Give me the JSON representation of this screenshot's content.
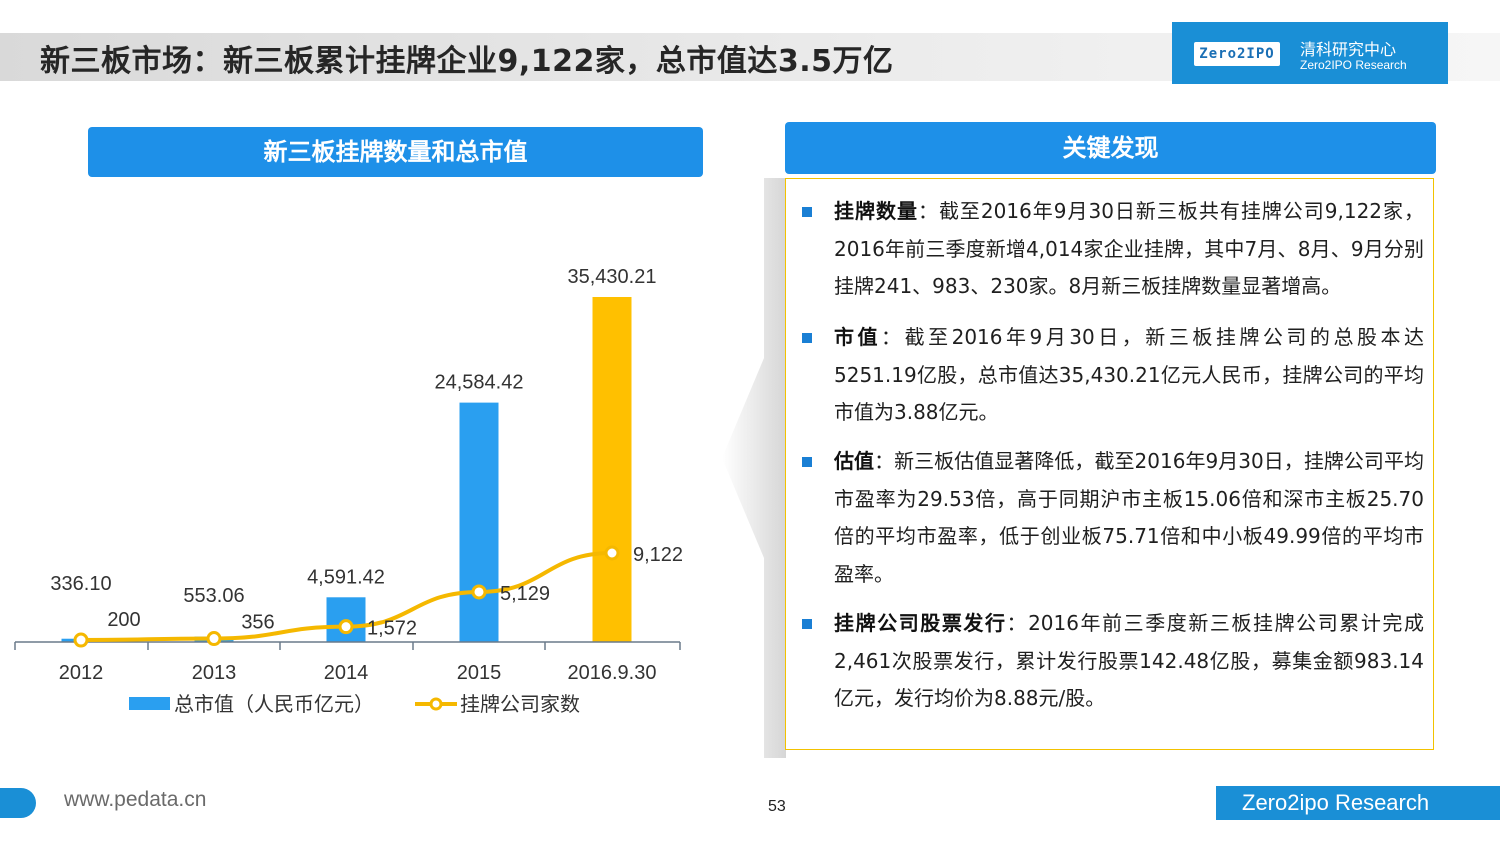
{
  "header": {
    "title": "新三板市场：新三板累计挂牌企业9,122家，总市值达3.5万亿",
    "logo_badge": "Zero2IPO",
    "logo_cn": "清科研究中心",
    "logo_en": "Zero2IPO Research"
  },
  "left_panel": {
    "heading": "新三板挂牌数量和总市值"
  },
  "right_panel": {
    "heading": "关键发现",
    "findings": [
      {
        "label": "挂牌数量",
        "text": "：截至2016年9月30日新三板共有挂牌公司9,122家，2016年前三季度新增4,014家企业挂牌，其中7月、8月、9月分别挂牌241、983、230家。8月新三板挂牌数量显著增高。"
      },
      {
        "label": "市值",
        "text": "：截至2016年9月30日，新三板挂牌公司的总股本达5251.19亿股，总市值达35,430.21亿元人民币，挂牌公司的平均市值为3.88亿元。"
      },
      {
        "label": "估值",
        "text": "：新三板估值显著降低，截至2016年9月30日，挂牌公司平均市盈率为29.53倍，高于同期沪市主板15.06倍和深市主板25.70倍的平均市盈率，低于创业板75.71倍和中小板49.99倍的平均市盈率。"
      },
      {
        "label": "挂牌公司股票发行",
        "text": "：2016年前三季度新三板挂牌公司累计完成2,461次股票发行，累计发行股票142.48亿股，募集金额983.14亿元，发行均价为8.88元/股。"
      }
    ]
  },
  "chart_data": {
    "type": "bar",
    "categories": [
      "2012",
      "2013",
      "2014",
      "2015",
      "2016.9.30"
    ],
    "series": [
      {
        "name": "总市值（人民币亿元）",
        "kind": "bar",
        "values": [
          336.1,
          553.06,
          4591.42,
          24584.42,
          35430.21
        ],
        "labels": [
          "336.10",
          "553.06",
          "4,591.42",
          "24,584.42",
          "35,430.21"
        ],
        "colors": [
          "#2a9ff0",
          "#2a9ff0",
          "#2a9ff0",
          "#2a9ff0",
          "#ffc000"
        ]
      },
      {
        "name": "挂牌公司家数",
        "kind": "line",
        "color": "#f5b800",
        "values": [
          200,
          356,
          1572,
          5129,
          9122
        ],
        "labels": [
          "200",
          "356",
          "1,572",
          "5,129",
          "9,122"
        ]
      }
    ],
    "grid": false,
    "legend_position": "bottom"
  },
  "footer": {
    "url": "www.pedata.cn",
    "page_number": "53",
    "brand": "Zero2ipo Research"
  }
}
